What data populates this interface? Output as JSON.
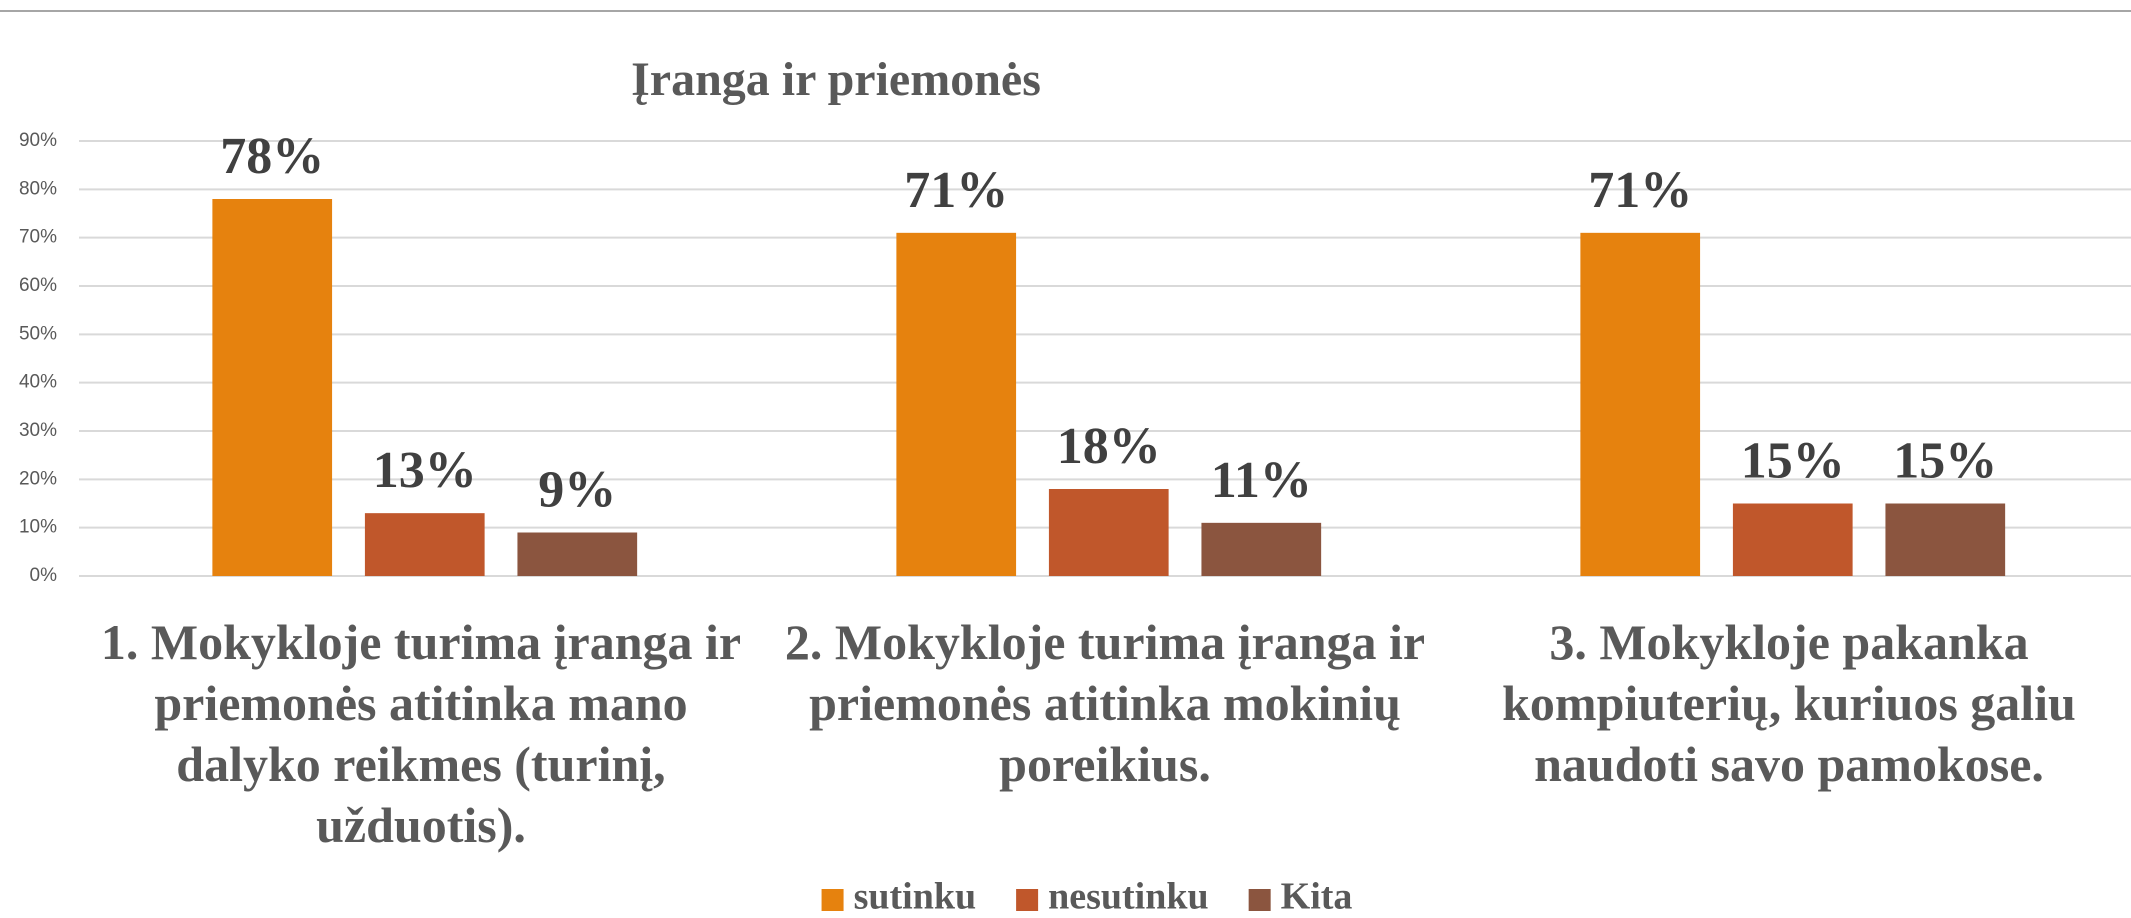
{
  "chart_data": {
    "type": "bar",
    "title": "Įranga ir priemonės",
    "categories": [
      "1. Mokykloje turima įranga ir priemonės atitinka mano dalyko reikmes (turinį, užduotis).",
      "2. Mokykloje turima įranga ir priemonės atitinka mokinių poreikius.",
      "3. Mokykloje pakanka kompiuterių, kuriuos galiu naudoti savo pamokose."
    ],
    "series": [
      {
        "name": "sutinku",
        "color": "#e6820e",
        "values": [
          78,
          71,
          71
        ],
        "value_labels": [
          "78%",
          "71%",
          "71%"
        ]
      },
      {
        "name": "nesutinku",
        "color": "#c0572b",
        "values": [
          13,
          18,
          15
        ],
        "value_labels": [
          "13%",
          "18%",
          "15%"
        ]
      },
      {
        "name": "Kita",
        "color": "#8b553f",
        "values": [
          9,
          11,
          15
        ],
        "value_labels": [
          "9%",
          "11%",
          "15%"
        ]
      }
    ],
    "ylim": [
      0,
      90
    ],
    "yticks": [
      {
        "value": 0,
        "label": "0%"
      },
      {
        "value": 10,
        "label": "10%"
      },
      {
        "value": 20,
        "label": "20%"
      },
      {
        "value": 30,
        "label": "30%"
      },
      {
        "value": 40,
        "label": "40%"
      },
      {
        "value": 50,
        "label": "50%"
      },
      {
        "value": 60,
        "label": "60%"
      },
      {
        "value": 70,
        "label": "70%"
      },
      {
        "value": 80,
        "label": "80%"
      },
      {
        "value": 90,
        "label": "90%"
      }
    ],
    "grid": true,
    "legend": "bottom"
  }
}
